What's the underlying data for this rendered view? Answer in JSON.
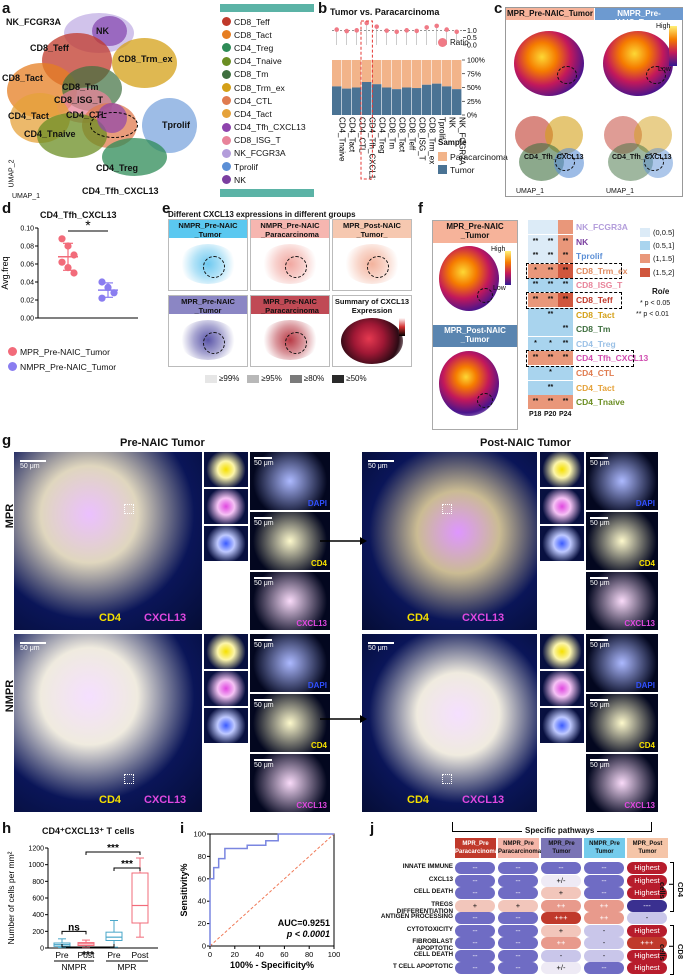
{
  "panels": {
    "a": "a",
    "b": "b",
    "c": "c",
    "d": "d",
    "e": "e",
    "f": "f",
    "g": "g",
    "h": "h",
    "i": "i",
    "j": "j"
  },
  "a": {
    "cluster_labels": [
      "NK_FCGR3A",
      "NK",
      "CD8_Teff",
      "CD8_Tact",
      "CD8_Trm_ex",
      "CD8_Tm",
      "CD8_ISG_T",
      "CD4_Tact",
      "CD4_CTL",
      "CD4_Tnaive",
      "Tprolif",
      "CD4_Treg",
      "CD4_Tfh_CXCL13"
    ],
    "axis_x": "UMAP_1",
    "axis_y": "UMAP_2",
    "legend": [
      {
        "name": "CD8_Teff",
        "color": "#c0392b"
      },
      {
        "name": "CD8_Tact",
        "color": "#e67e22"
      },
      {
        "name": "CD4_Treg",
        "color": "#2e8b57"
      },
      {
        "name": "CD4_Tnaive",
        "color": "#6b8e23"
      },
      {
        "name": "CD8_Tm",
        "color": "#3f6f3f"
      },
      {
        "name": "CD8_Trm_ex",
        "color": "#d4a017"
      },
      {
        "name": "CD4_CTL",
        "color": "#e07b4f"
      },
      {
        "name": "CD4_Tact",
        "color": "#e5a23a"
      },
      {
        "name": "CD4_Tfh_CXCL13",
        "color": "#8e44ad"
      },
      {
        "name": "CD8_ISG_T",
        "color": "#e8839a"
      },
      {
        "name": "NK_FCGR3A",
        "color": "#b39ddb"
      },
      {
        "name": "Tprolif",
        "color": "#5b8fd6"
      },
      {
        "name": "NK",
        "color": "#7b3fa0"
      }
    ]
  },
  "b": {
    "title": "Tumor vs. Paracarcinoma",
    "ratio_legend": "Ratio",
    "ratio_ticks": [
      "1.0",
      "0.5",
      "0.0"
    ],
    "pct_ticks": [
      "100%",
      "75%",
      "50%",
      "25%",
      "0%"
    ],
    "sample_title": "Sample",
    "sample_legend": [
      {
        "name": "Paracarcinoma",
        "color": "#f2b48a"
      },
      {
        "name": "Tumor",
        "color": "#4a7394"
      }
    ],
    "categories": [
      "CD4_Tnaive",
      "CD4_Tact",
      "CD4_CTL",
      "CD4_Tfh_CXCL13",
      "CD4_Treg",
      "CD8_Tm",
      "CD8_Tact",
      "CD8_Teff",
      "CD8_ISG_T",
      "CD8_Trm_ex",
      "Tprolif",
      "NK",
      "NK_FCGR3A"
    ],
    "tumor_fraction": [
      0.52,
      0.48,
      0.5,
      0.6,
      0.56,
      0.5,
      0.47,
      0.5,
      0.49,
      0.55,
      0.57,
      0.52,
      0.47
    ],
    "ratio": [
      1.05,
      0.95,
      1.0,
      1.5,
      1.25,
      0.98,
      0.9,
      1.0,
      0.96,
      1.2,
      1.3,
      1.05,
      0.9
    ]
  },
  "c": {
    "titles": [
      "MPR_Pre-NAIC_Tumor",
      "NMPR_Pre-NAIC_Tumor"
    ],
    "high": "High",
    "low": "Low",
    "lower_label": "CD4_Tfh_CXCL13",
    "axis_x": "UMAP_1",
    "axis_y": "UMAP_2"
  },
  "d": {
    "title": "CD4_Tfh_CXCL13",
    "ylabel": "Avg.freq",
    "yticks": [
      "0.10",
      "0.08",
      "0.06",
      "0.04",
      "0.02",
      "0.00"
    ],
    "sig": "*",
    "legend": [
      {
        "name": "MPR_Pre-NAIC_Tumor",
        "color": "#f26b7a"
      },
      {
        "name": "NMPR_Pre-NAIC_Tumor",
        "color": "#8a7df0"
      }
    ]
  },
  "chart_data": [
    {
      "type": "scatter",
      "title": "CD4_Tfh_CXCL13",
      "ylabel": "Avg.freq",
      "ylim": [
        0,
        0.1
      ],
      "series": [
        {
          "name": "MPR_Pre-NAIC_Tumor",
          "values": [
            0.088,
            0.08,
            0.07,
            0.062,
            0.056,
            0.05
          ],
          "mean": 0.068,
          "sd": 0.015
        },
        {
          "name": "NMPR_Pre-NAIC_Tumor",
          "values": [
            0.04,
            0.034,
            0.028,
            0.022
          ],
          "mean": 0.031,
          "sd": 0.008
        }
      ]
    },
    {
      "type": "box",
      "title": "CD4⁺CXCL13⁺ T cells",
      "ylabel": "Number of cells per mm²",
      "ylim": [
        0,
        1200
      ],
      "categories": [
        "Pre",
        "Post",
        "Pre",
        "Post"
      ],
      "groups": [
        "NMPR",
        "NMPR",
        "MPR",
        "MPR"
      ],
      "stats": [
        {
          "min": 5,
          "q1": 20,
          "median": 40,
          "q3": 60,
          "max": 110
        },
        {
          "min": 5,
          "q1": 30,
          "median": 50,
          "q3": 65,
          "max": 95
        },
        {
          "min": 10,
          "q1": 90,
          "median": 130,
          "q3": 190,
          "max": 330
        },
        {
          "min": 130,
          "q1": 300,
          "median": 510,
          "q3": 900,
          "max": 1080
        }
      ]
    },
    {
      "type": "line",
      "xlabel": "100% - Specificity%",
      "ylabel": "Sensitivity%",
      "xlim": [
        0,
        100
      ],
      "ylim": [
        0,
        100
      ],
      "x": [
        0,
        0,
        3,
        3,
        7,
        7,
        12,
        12,
        30,
        30,
        45,
        45,
        55,
        55,
        100
      ],
      "y": [
        0,
        60,
        60,
        70,
        70,
        78,
        78,
        87,
        87,
        90,
        90,
        94,
        94,
        100,
        100
      ]
    }
  ],
  "e": {
    "title": "Different CXCL13 expressions in different groups",
    "groups": [
      {
        "name": "NMPR_Pre-NAIC _Tumor",
        "color": "#5bc8f0",
        "blob": "#6ec9f0"
      },
      {
        "name": "NMPR_Pre-NAIC _Paracarcinoma",
        "color": "#f6b6b0",
        "blob": "#f1a7a0"
      },
      {
        "name": "MPR_Post-NAIC _Tumor_",
        "color": "#f6c8b0",
        "blob": "#f3b29c"
      },
      {
        "name": "MPR_Pre-NAIC _Tumor",
        "color": "#8b86c4",
        "blob": "#5a55a8"
      },
      {
        "name": "MPR_Pre-NAIC _Paracarcinoma",
        "color": "#c04a55",
        "blob": "#b83a45"
      },
      {
        "name": "Summary of CXCL13 Expression",
        "color": "#ffffff",
        "blob": "#b02040"
      }
    ],
    "threshold_legend": [
      "≥99%",
      "≥95%",
      "≥80%",
      "≥50%"
    ]
  },
  "f": {
    "upper_title": "MPR_Pre-NAIC _Tumor",
    "lower_title": "MPR_Post-NAIC _Tumor",
    "high": "High",
    "low": "Low",
    "rows": [
      {
        "name": "NK_FCGR3A",
        "color": "#b39ddb",
        "cells": [
          "",
          "",
          ""
        ]
      },
      {
        "name": "NK",
        "color": "#7b3fa0",
        "cells": [
          "**",
          "**",
          "**"
        ]
      },
      {
        "name": "Tprolif",
        "color": "#5b8fd6",
        "cells": [
          "**",
          "**",
          "**"
        ]
      },
      {
        "name": "CD8_Trm_ex",
        "color": "#e08a5f",
        "cells": [
          "*",
          "**",
          "**"
        ]
      },
      {
        "name": "CD8_ISG_T",
        "color": "#e8839a",
        "cells": [
          "**",
          "**",
          "**"
        ]
      },
      {
        "name": "CD8_Teff",
        "color": "#c0392b",
        "cells": [
          "**",
          "**",
          "**"
        ]
      },
      {
        "name": "CD8_Tact",
        "color": "#d4a017",
        "cells": [
          "",
          "**",
          ""
        ]
      },
      {
        "name": "CD8_Tm",
        "color": "#3f6f3f",
        "cells": [
          "",
          "",
          "**"
        ]
      },
      {
        "name": "CD4_Treg",
        "color": "#9bc1e6",
        "cells": [
          "*",
          "*",
          "**"
        ]
      },
      {
        "name": "CD4_Tfh_CXCL13",
        "color": "#d14db0",
        "cells": [
          "**",
          "**",
          "**"
        ]
      },
      {
        "name": "CD4_CTL",
        "color": "#e07b4f",
        "cells": [
          "",
          "*",
          ""
        ]
      },
      {
        "name": "CD4_Tact",
        "color": "#e5a23a",
        "cells": [
          "",
          "**",
          ""
        ]
      },
      {
        "name": "CD4_Tnaive",
        "color": "#6b8e23",
        "cells": [
          "**",
          "**",
          "**"
        ]
      }
    ],
    "cols": [
      "P18",
      "P20",
      "P24"
    ],
    "roe_title": "Ro/e",
    "roe_legend": [
      {
        "name": "(0,0.5]",
        "color": "#dcebf7"
      },
      {
        "name": "(0.5,1]",
        "color": "#a9d4ee"
      },
      {
        "name": "(1,1.5]",
        "color": "#e9977a"
      },
      {
        "name": "(1.5,2]",
        "color": "#d0563d"
      }
    ],
    "sig_notes": [
      "* p < 0.05",
      "** p < 0.01"
    ]
  },
  "g": {
    "left_title": "Pre-NAIC Tumor",
    "right_title": "Post-NAIC Tumor",
    "row_labels": [
      "MPR",
      "NMPR"
    ],
    "scale": "50 μm",
    "channels": [
      "DAPI",
      "CD4",
      "CXCL13"
    ],
    "merge_labels": [
      "CD4",
      "CXCL13"
    ]
  },
  "h": {
    "title": "CD4⁺CXCL13⁺ T cells",
    "ylabel": "Number of cells per mm²",
    "yticks": [
      "1200",
      "1000",
      "800",
      "600",
      "400",
      "200",
      "0"
    ],
    "xticks": [
      "Pre",
      "Post",
      "Pre",
      "Post"
    ],
    "groups": [
      "NMPR",
      "MPR"
    ],
    "sig": [
      "***",
      "***",
      "***",
      "ns"
    ]
  },
  "i": {
    "xlabel": "100% - Specificity%",
    "ylabel": "Sensitivity%",
    "ticks": [
      "0",
      "20",
      "40",
      "60",
      "80",
      "100"
    ],
    "auc": "AUC=0.9251",
    "pval": "p < 0.0001"
  },
  "j": {
    "header": "Specific pathways",
    "columns": [
      {
        "name": "MPR_Pre\nParacarcinoma",
        "bg": "#c0392b"
      },
      {
        "name": "NMPR_Pre\nParacarcinoma",
        "bg": "#f4b5a8"
      },
      {
        "name": "MPR_Pre\nTumor",
        "bg": "#7a74b5"
      },
      {
        "name": "NMPR_Pre\nTumor",
        "bg": "#74cbec"
      },
      {
        "name": "MPR_Post\nTumor",
        "bg": "#f5c5a8"
      }
    ],
    "rows": [
      {
        "name": "INNATE IMMUNE",
        "vals": [
          "--",
          "--",
          "--",
          "--",
          "Highest"
        ]
      },
      {
        "name": "CXCL13",
        "vals": [
          "--",
          "--",
          "+/-",
          "--",
          "Highest"
        ]
      },
      {
        "name": "CELL DEATH",
        "vals": [
          "--",
          "--",
          "+",
          "--",
          "Highest"
        ]
      },
      {
        "name": "TREGS DIFFERENTIATION",
        "vals": [
          "+",
          "+",
          "++",
          "++",
          "---"
        ]
      },
      {
        "name": "ANTIGEN PROCESSING",
        "vals": [
          "--",
          "--",
          "+++",
          "++",
          "-"
        ]
      },
      {
        "name": "CYTOTOXICITY",
        "vals": [
          "--",
          "--",
          "+",
          "-",
          "Highest"
        ]
      },
      {
        "name": "FIBROBLAST APOPTOTIC",
        "vals": [
          "--",
          "--",
          "++",
          "-",
          "+++"
        ]
      },
      {
        "name": "CELL DEATH",
        "vals": [
          "--",
          "--",
          "-",
          "-",
          "Highest"
        ]
      },
      {
        "name": "T CELL APOPTOTIC",
        "vals": [
          "--",
          "--",
          "+/-",
          "--",
          "Highest"
        ]
      }
    ],
    "side_labels": [
      "CD4 T cells",
      "CD8 T cells"
    ]
  }
}
